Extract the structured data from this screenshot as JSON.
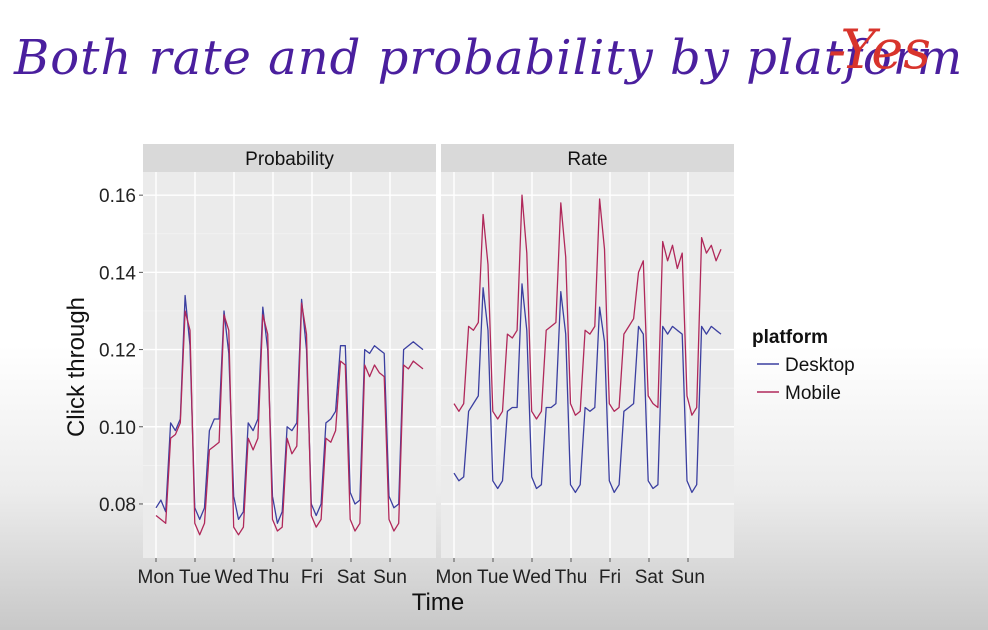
{
  "annotation": {
    "title": "Both rate and probability by platform",
    "answer": "-Yes"
  },
  "colors": {
    "desktop": "#3b3fa0",
    "mobile": "#b0285a",
    "strip": "#d9d9d9",
    "panel": "#ebebeb",
    "grid": "#ffffff"
  },
  "chart_data": {
    "type": "line",
    "ylabel": "Click through",
    "xlabel": "Time",
    "yticks": [
      0.08,
      0.1,
      0.12,
      0.14,
      0.16
    ],
    "ylim": [
      0.066,
      0.166
    ],
    "days": [
      "Mon",
      "Tue",
      "Wed",
      "Thu",
      "Fri",
      "Sat",
      "Sun"
    ],
    "legend": {
      "title": "platform",
      "entries": [
        "Desktop",
        "Mobile"
      ],
      "placement": "right"
    },
    "panels": [
      {
        "title": "Probability",
        "series": [
          {
            "name": "Desktop",
            "values": [
              0.079,
              0.081,
              0.078,
              0.101,
              0.099,
              0.102,
              0.134,
              0.121,
              0.079,
              0.076,
              0.079,
              0.099,
              0.102,
              0.102,
              0.13,
              0.119,
              0.082,
              0.076,
              0.078,
              0.101,
              0.099,
              0.102,
              0.131,
              0.12,
              0.082,
              0.075,
              0.078,
              0.1,
              0.099,
              0.101,
              0.133,
              0.12,
              0.08,
              0.077,
              0.08,
              0.101,
              0.102,
              0.104,
              0.121,
              0.121,
              0.083,
              0.08,
              0.081,
              0.12,
              0.119,
              0.121,
              0.12,
              0.119,
              0.082,
              0.079,
              0.08,
              0.12,
              0.121,
              0.122,
              0.121,
              0.12
            ]
          },
          {
            "name": "Mobile",
            "values": [
              0.077,
              0.076,
              0.075,
              0.097,
              0.098,
              0.101,
              0.13,
              0.125,
              0.075,
              0.072,
              0.075,
              0.094,
              0.095,
              0.096,
              0.129,
              0.125,
              0.074,
              0.072,
              0.074,
              0.097,
              0.094,
              0.097,
              0.129,
              0.124,
              0.076,
              0.073,
              0.074,
              0.097,
              0.093,
              0.095,
              0.132,
              0.124,
              0.077,
              0.074,
              0.076,
              0.097,
              0.096,
              0.099,
              0.117,
              0.116,
              0.076,
              0.073,
              0.075,
              0.116,
              0.113,
              0.116,
              0.114,
              0.113,
              0.076,
              0.073,
              0.075,
              0.116,
              0.115,
              0.117,
              0.116,
              0.115
            ]
          }
        ]
      },
      {
        "title": "Rate",
        "series": [
          {
            "name": "Desktop",
            "values": [
              0.088,
              0.086,
              0.087,
              0.104,
              0.106,
              0.108,
              0.136,
              0.125,
              0.086,
              0.084,
              0.086,
              0.104,
              0.105,
              0.105,
              0.137,
              0.125,
              0.087,
              0.084,
              0.085,
              0.105,
              0.105,
              0.106,
              0.135,
              0.124,
              0.085,
              0.083,
              0.085,
              0.105,
              0.104,
              0.105,
              0.131,
              0.122,
              0.086,
              0.083,
              0.085,
              0.104,
              0.105,
              0.106,
              0.126,
              0.124,
              0.086,
              0.084,
              0.085,
              0.126,
              0.124,
              0.126,
              0.125,
              0.124,
              0.086,
              0.083,
              0.085,
              0.126,
              0.124,
              0.126,
              0.125,
              0.124
            ]
          },
          {
            "name": "Mobile",
            "values": [
              0.106,
              0.104,
              0.106,
              0.126,
              0.125,
              0.127,
              0.155,
              0.142,
              0.104,
              0.102,
              0.104,
              0.124,
              0.123,
              0.125,
              0.16,
              0.145,
              0.104,
              0.102,
              0.104,
              0.125,
              0.126,
              0.127,
              0.158,
              0.144,
              0.106,
              0.103,
              0.104,
              0.125,
              0.124,
              0.126,
              0.159,
              0.146,
              0.106,
              0.104,
              0.105,
              0.124,
              0.126,
              0.128,
              0.14,
              0.143,
              0.108,
              0.106,
              0.105,
              0.148,
              0.143,
              0.147,
              0.141,
              0.145,
              0.108,
              0.103,
              0.105,
              0.149,
              0.145,
              0.147,
              0.143,
              0.146
            ]
          }
        ]
      }
    ]
  }
}
